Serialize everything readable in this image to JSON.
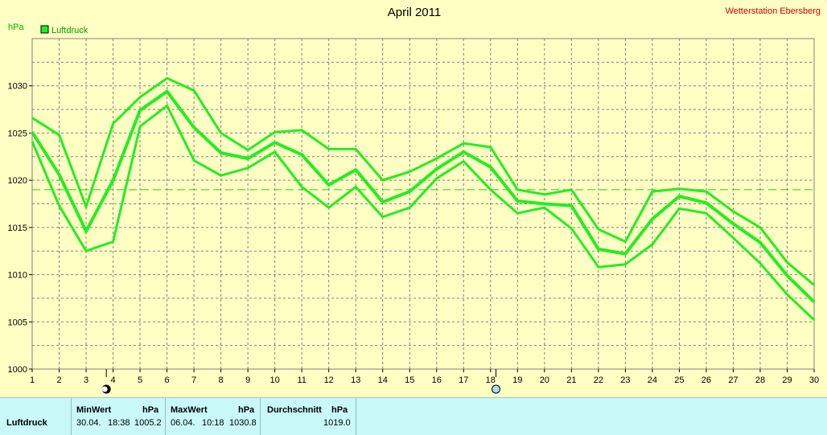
{
  "header": {
    "title": "April 2011",
    "station": "Wetterstation Ebersberg",
    "unit": "hPa",
    "legend_label": "Luftdruck"
  },
  "colors": {
    "background": "#ffffc4",
    "series": "#22ee22",
    "grid": "#808080",
    "average_line": "#22cc22",
    "station_text": "#d00000",
    "table_bg": "#c8f8f8"
  },
  "chart_data": {
    "type": "line",
    "title": "April 2011",
    "ylabel": "hPa",
    "xlabel": "",
    "x": [
      1,
      2,
      3,
      4,
      5,
      6,
      7,
      8,
      9,
      10,
      11,
      12,
      13,
      14,
      15,
      16,
      17,
      18,
      19,
      20,
      21,
      22,
      23,
      24,
      25,
      26,
      27,
      28,
      29,
      30
    ],
    "xlim": [
      1,
      30
    ],
    "ylim": [
      1000,
      1035
    ],
    "yticks": [
      1000,
      1005,
      1010,
      1015,
      1020,
      1025,
      1030
    ],
    "grid": true,
    "legend_position": "top-left",
    "average_value": 1019.0,
    "series": [
      {
        "name": "Luftdruck",
        "role": "max",
        "values": [
          1026.6,
          1024.8,
          1017.2,
          1026.0,
          1028.8,
          1030.8,
          1029.5,
          1025.0,
          1023.2,
          1025.1,
          1025.3,
          1023.3,
          1023.3,
          1020.0,
          1020.9,
          1022.3,
          1023.9,
          1023.5,
          1019.0,
          1018.5,
          1019.0,
          1014.8,
          1013.5,
          1018.8,
          1019.1,
          1018.8,
          1016.7,
          1015.0,
          1011.3,
          1008.9
        ]
      },
      {
        "name": "Luftdruck",
        "role": "mean",
        "values": [
          1025.1,
          1020.6,
          1014.6,
          1020.0,
          1027.4,
          1029.4,
          1025.6,
          1022.9,
          1022.3,
          1024.0,
          1022.7,
          1019.5,
          1021.1,
          1017.7,
          1018.8,
          1021.2,
          1023.0,
          1021.4,
          1017.8,
          1017.5,
          1017.3,
          1012.7,
          1012.2,
          1015.9,
          1018.3,
          1017.6,
          1015.4,
          1013.4,
          1009.9,
          1007.1
        ]
      },
      {
        "name": "Luftdruck",
        "role": "min",
        "values": [
          1024.1,
          1017.3,
          1012.5,
          1013.5,
          1025.7,
          1027.9,
          1022.1,
          1020.5,
          1021.3,
          1023.0,
          1019.3,
          1017.1,
          1019.3,
          1016.1,
          1017.1,
          1020.2,
          1022.0,
          1019.0,
          1016.5,
          1017.1,
          1014.9,
          1010.8,
          1011.1,
          1013.2,
          1017.0,
          1016.5,
          1013.9,
          1011.2,
          1007.9,
          1005.2
        ]
      }
    ],
    "markers": [
      {
        "x": 3.75,
        "type": "new-moon"
      },
      {
        "x": 18.2,
        "type": "full-moon"
      }
    ]
  },
  "table": {
    "row_label": "Luftdruck",
    "columns": [
      {
        "title": "MinWert",
        "unit": "hPa",
        "date": "30.04.",
        "time": "18:38",
        "value": "1005.2"
      },
      {
        "title": "MaxWert",
        "unit": "hPa",
        "date": "06.04.",
        "time": "10:18",
        "value": "1030.8"
      },
      {
        "title": "Durchschnitt",
        "unit": "hPa",
        "date": "",
        "time": "",
        "value": "1019.0"
      }
    ]
  }
}
